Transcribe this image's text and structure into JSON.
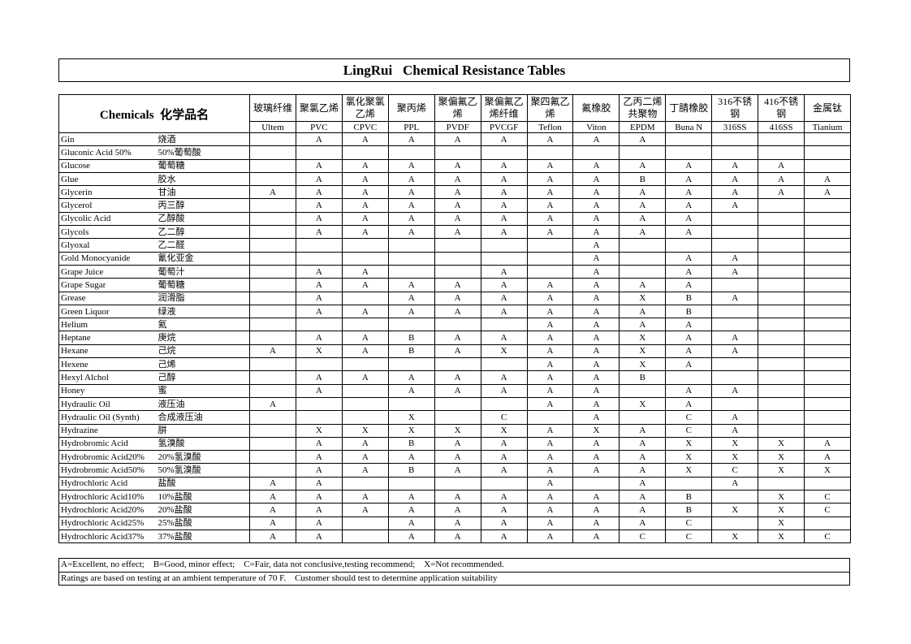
{
  "header": {
    "title": "LingRui   Chemical Resistance Tables"
  },
  "table": {
    "label_en": "Chemicals",
    "label_cn": "化学品名",
    "columns": [
      {
        "name": "玻璃纤维",
        "code": "Ultem"
      },
      {
        "name": "聚氯乙烯",
        "code": "PVC"
      },
      {
        "name": "氯化聚氯乙烯",
        "code": "CPVC"
      },
      {
        "name": "聚丙烯",
        "code": "PPL"
      },
      {
        "name": "聚偏氟乙烯",
        "code": "PVDF"
      },
      {
        "name": "聚偏氟乙烯纤维",
        "code": "PVCGF"
      },
      {
        "name": "聚四氟乙烯",
        "code": "Teflon"
      },
      {
        "name": "氟橡胶",
        "code": "Viton"
      },
      {
        "name": "乙丙二烯共聚物",
        "code": "EPDM"
      },
      {
        "name": "丁腈橡胶",
        "code": "Buna N"
      },
      {
        "name": "316不锈钢",
        "code": "316SS"
      },
      {
        "name": "416不锈钢",
        "code": "416SS"
      },
      {
        "name": "金属钛",
        "code": "Tianium"
      }
    ],
    "rows": [
      {
        "name": "Gin",
        "cn": "烧酒",
        "ratings": [
          null,
          "A",
          "A",
          "A",
          "A",
          "A",
          "A",
          "A",
          "A",
          null,
          null,
          null,
          null
        ]
      },
      {
        "name": "Gluconic Acid 50%",
        "cn": "50%葡萄酸",
        "ratings": [
          null,
          null,
          null,
          null,
          null,
          null,
          null,
          null,
          null,
          null,
          null,
          null,
          null
        ]
      },
      {
        "name": "Glucose",
        "cn": "葡萄糖",
        "ratings": [
          null,
          "A",
          "A",
          "A",
          "A",
          "A",
          "A",
          "A",
          "A",
          "A",
          "A",
          "A",
          null
        ]
      },
      {
        "name": "Glue",
        "cn": "胶水",
        "ratings": [
          null,
          "A",
          "A",
          "A",
          "A",
          "A",
          "A",
          "A",
          "B",
          "A",
          "A",
          "A",
          "A"
        ]
      },
      {
        "name": "Glycerin",
        "cn": "甘油",
        "ratings": [
          "A",
          "A",
          "A",
          "A",
          "A",
          "A",
          "A",
          "A",
          "A",
          "A",
          "A",
          "A",
          "A"
        ]
      },
      {
        "name": "Glycerol",
        "cn": "丙三醇",
        "ratings": [
          null,
          "A",
          "A",
          "A",
          "A",
          "A",
          "A",
          "A",
          "A",
          "A",
          "A",
          null,
          null
        ]
      },
      {
        "name": "Glycolic Acid",
        "cn": "乙醇酸",
        "ratings": [
          null,
          "A",
          "A",
          "A",
          "A",
          "A",
          "A",
          "A",
          "A",
          "A",
          null,
          null,
          null
        ]
      },
      {
        "name": "Glycols",
        "cn": "乙二醇",
        "ratings": [
          null,
          "A",
          "A",
          "A",
          "A",
          "A",
          "A",
          "A",
          "A",
          "A",
          null,
          null,
          null
        ]
      },
      {
        "name": "Glyoxal",
        "cn": "乙二醛",
        "ratings": [
          null,
          null,
          null,
          null,
          null,
          null,
          null,
          "A",
          null,
          null,
          null,
          null,
          null
        ]
      },
      {
        "name": "Gold Monocyanide",
        "cn": "氰化亚金",
        "ratings": [
          null,
          null,
          null,
          null,
          null,
          null,
          null,
          "A",
          null,
          "A",
          "A",
          null,
          null
        ]
      },
      {
        "name": "Grape Juice",
        "cn": "葡萄汁",
        "ratings": [
          null,
          "A",
          "A",
          null,
          null,
          "A",
          null,
          "A",
          null,
          "A",
          "A",
          null,
          null
        ]
      },
      {
        "name": "Grape Sugar",
        "cn": "葡萄糖",
        "ratings": [
          null,
          "A",
          "A",
          "A",
          "A",
          "A",
          "A",
          "A",
          "A",
          "A",
          null,
          null,
          null
        ]
      },
      {
        "name": "Grease",
        "cn": "润滑脂",
        "ratings": [
          null,
          "A",
          null,
          "A",
          "A",
          "A",
          "A",
          "A",
          "X",
          "B",
          "A",
          null,
          null
        ]
      },
      {
        "name": "Green Liquor",
        "cn": "绿液",
        "ratings": [
          null,
          "A",
          "A",
          "A",
          "A",
          "A",
          "A",
          "A",
          "A",
          "B",
          null,
          null,
          null
        ]
      },
      {
        "name": "Helium",
        "cn": "氦",
        "ratings": [
          null,
          null,
          null,
          null,
          null,
          null,
          "A",
          "A",
          "A",
          "A",
          null,
          null,
          null
        ]
      },
      {
        "name": "Heptane",
        "cn": "庚烷",
        "ratings": [
          null,
          "A",
          "A",
          "B",
          "A",
          "A",
          "A",
          "A",
          "X",
          "A",
          "A",
          null,
          null
        ]
      },
      {
        "name": "Hexane",
        "cn": "己烷",
        "ratings": [
          "A",
          "X",
          "A",
          "B",
          "A",
          "X",
          "A",
          "A",
          "X",
          "A",
          "A",
          null,
          null
        ]
      },
      {
        "name": "Hexene",
        "cn": "己烯",
        "ratings": [
          null,
          null,
          null,
          null,
          null,
          null,
          "A",
          "A",
          "X",
          "A",
          null,
          null,
          null
        ]
      },
      {
        "name": "Hexyl Alchol",
        "cn": "己醇",
        "ratings": [
          null,
          "A",
          "A",
          "A",
          "A",
          "A",
          "A",
          "A",
          "B",
          null,
          null,
          null,
          null
        ]
      },
      {
        "name": "Honey",
        "cn": "蜜",
        "ratings": [
          null,
          "A",
          null,
          "A",
          "A",
          "A",
          "A",
          "A",
          null,
          "A",
          "A",
          null,
          null
        ]
      },
      {
        "name": "Hydraulic Oil",
        "cn": "液压油",
        "ratings": [
          "A",
          null,
          null,
          null,
          null,
          null,
          "A",
          "A",
          "X",
          "A",
          null,
          null,
          null
        ]
      },
      {
        "name": "Hydraulic Oil  (Synth)",
        "cn": "合成液压油",
        "ratings": [
          null,
          null,
          null,
          "X",
          null,
          "C",
          null,
          "A",
          null,
          "C",
          "A",
          null,
          null
        ]
      },
      {
        "name": "Hydrazine",
        "cn": "肼",
        "ratings": [
          null,
          "X",
          "X",
          "X",
          "X",
          "X",
          "A",
          "X",
          "A",
          "C",
          "A",
          null,
          null
        ]
      },
      {
        "name": "Hydrobromic Acid",
        "cn": "氢溴酸",
        "ratings": [
          null,
          "A",
          "A",
          "B",
          "A",
          "A",
          "A",
          "A",
          "A",
          "X",
          "X",
          "X",
          "A"
        ]
      },
      {
        "name": "Hydrobromic Acid20%",
        "cn": "20%氢溴酸",
        "ratings": [
          null,
          "A",
          "A",
          "A",
          "A",
          "A",
          "A",
          "A",
          "A",
          "X",
          "X",
          "X",
          "A"
        ]
      },
      {
        "name": "Hydrobromic Acid50%",
        "cn": "50%氢溴酸",
        "ratings": [
          null,
          "A",
          "A",
          "B",
          "A",
          "A",
          "A",
          "A",
          "A",
          "X",
          "C",
          "X",
          "X"
        ]
      },
      {
        "name": "Hydrochloric Acid",
        "cn": "盐酸",
        "ratings": [
          "A",
          "A",
          null,
          null,
          null,
          null,
          "A",
          null,
          "A",
          null,
          "A",
          null,
          null
        ]
      },
      {
        "name": "Hydrochloric Acid10%",
        "cn": "10%盐酸",
        "ratings": [
          "A",
          "A",
          "A",
          "A",
          "A",
          "A",
          "A",
          "A",
          "A",
          "B",
          null,
          "X",
          "C"
        ]
      },
      {
        "name": "Hydrochloric Acid20%",
        "cn": "20%盐酸",
        "ratings": [
          "A",
          "A",
          "A",
          "A",
          "A",
          "A",
          "A",
          "A",
          "A",
          "B",
          "X",
          "X",
          "C"
        ]
      },
      {
        "name": "Hydrochloric Acid25%",
        "cn": "25%盐酸",
        "ratings": [
          "A",
          "A",
          null,
          "A",
          "A",
          "A",
          "A",
          "A",
          "A",
          "C",
          null,
          "X",
          null
        ]
      },
      {
        "name": "Hydrochloric Acid37%",
        "cn": "37%盐酸",
        "ratings": [
          "A",
          "A",
          null,
          "A",
          "A",
          "A",
          "A",
          "A",
          "C",
          "C",
          "X",
          "X",
          "C"
        ]
      }
    ]
  },
  "footer": {
    "legend": "A=Excellent, no effect;    B=Good, minor effect;    C=Fair, data not conclusive,testing recommend;    X=Not recommended.",
    "note": "Ratings are based on testing at an ambient temperature of 70 F.    Customer should test to determine application suitability"
  }
}
